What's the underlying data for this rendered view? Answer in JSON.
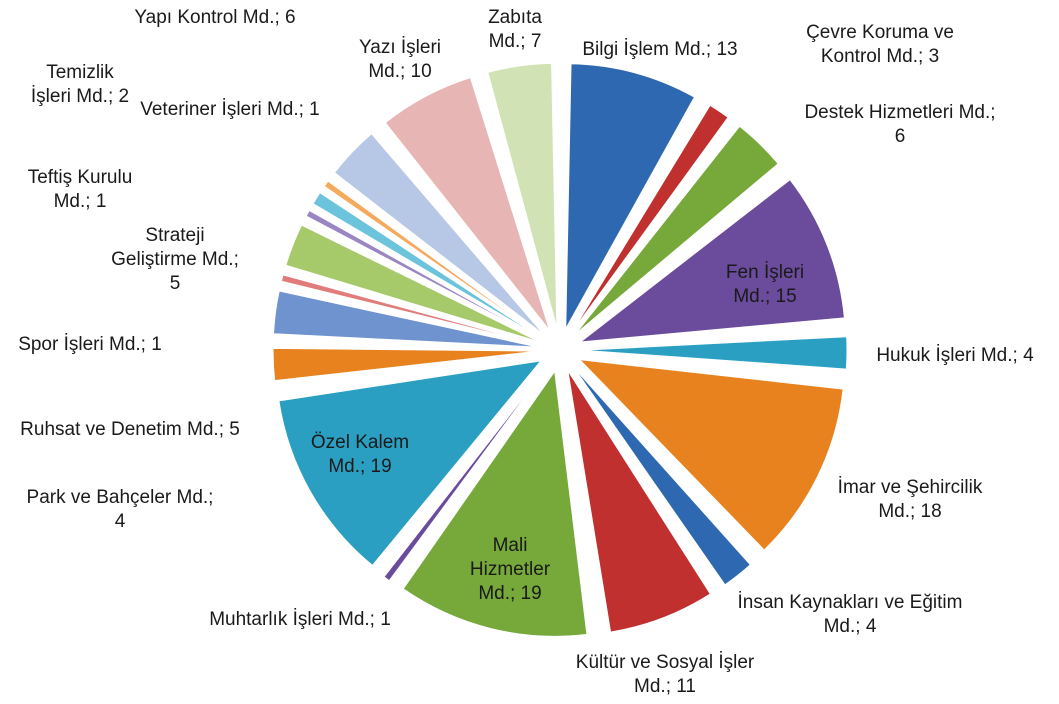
{
  "chart_data": {
    "type": "pie",
    "values": [
      13,
      3,
      6,
      15,
      4,
      18,
      4,
      11,
      19,
      1,
      19,
      4,
      5,
      1,
      5,
      1,
      2,
      1,
      6,
      10,
      7
    ],
    "value_labels": [
      "Bilgi İşlem Md.; 13",
      "Çevre Koruma ve Kontrol Md.; 3",
      "Destek Hizmetleri Md.; 6",
      "Fen İşleri Md.; 15",
      "Hukuk İşleri Md.; 4",
      "İmar ve Şehircilik Md.; 18",
      "İnsan Kaynakları ve Eğitim Md.; 4",
      "Kültür ve Sosyal İşler Md.; 11",
      "Mali Hizmetler Md.; 19",
      "Muhtarlık İşleri Md.; 1",
      "Özel Kalem Md.; 19",
      "Park ve Bahçeler Md.; 4",
      "Ruhsat ve Denetim Md.; 5",
      "Spor İşleri Md.; 1",
      "Strateji Geliştirme Md.; 5",
      "Teftiş Kurulu Md.; 1",
      "Temizlik İşleri Md.; 2",
      "Veteriner İşleri Md.; 1",
      "Yapı Kontrol Md.; 6",
      "Yazı İşleri Md.; 10",
      "Zabıta Md.; 7"
    ],
    "colors": [
      "#2e68b0",
      "#c0302e",
      "#76a83a",
      "#6a4b9c",
      "#2a9fc2",
      "#e8821e",
      "#2e68b0",
      "#c0302e",
      "#76a83a",
      "#6a4b9c",
      "#2a9fc2",
      "#e8821e",
      "#6f93cf",
      "#e07d7b",
      "#a6c96a",
      "#9b86c4",
      "#6cc3dc",
      "#f5a95c",
      "#b7c7e6",
      "#e8b5b5",
      "#d1e3b5"
    ]
  }
}
